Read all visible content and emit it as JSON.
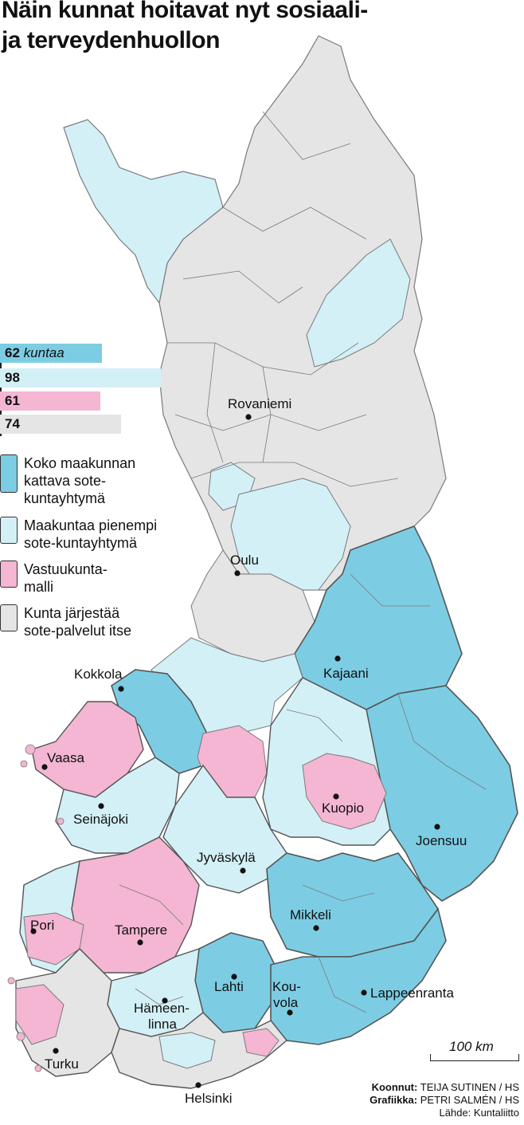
{
  "title": {
    "line1": "Näin kunnat hoitavat nyt sosiaali-",
    "line2": "ja terveydenhuollon"
  },
  "colors": {
    "koko_maakunta": "#7ccde4",
    "pienempi": "#d3f0f6",
    "vastuukunta": "#f4b6d2",
    "itse": "#e5e5e5",
    "border": "#555555"
  },
  "counts": [
    {
      "value": 62,
      "count": "62",
      "unit": "kuntaa",
      "color": "#7ccde4"
    },
    {
      "value": 98,
      "count": "98",
      "unit": "",
      "color": "#d3f0f6"
    },
    {
      "value": 61,
      "count": "61",
      "unit": "",
      "color": "#f4b6d2"
    },
    {
      "value": 74,
      "count": "74",
      "unit": "",
      "color": "#e5e5e5"
    }
  ],
  "legend": [
    {
      "line1": "Koko maakunnan",
      "line2": "kattava sote-",
      "line3": "kuntayhtymä",
      "color": "#7ccde4"
    },
    {
      "line1": "Maakuntaa pienempi",
      "line2": "sote-kuntayhtymä",
      "line3": "",
      "color": "#d3f0f6"
    },
    {
      "line1": "Vastuukunta-",
      "line2": "malli",
      "line3": "",
      "color": "#f4b6d2"
    },
    {
      "line1": "Kunta järjestää",
      "line2": "sote-palvelut itse",
      "line3": "",
      "color": "#e5e5e5"
    }
  ],
  "cities": {
    "rovaniemi": "Rovaniemi",
    "oulu": "Oulu",
    "kajaani": "Kajaani",
    "kokkola": "Kokkola",
    "vaasa": "Vaasa",
    "kuopio": "Kuopio",
    "seinajoki": "Seinäjoki",
    "joensuu": "Joensuu",
    "jyvaskyla": "Jyväskylä",
    "mikkeli": "Mikkeli",
    "pori": "Pori",
    "tampere": "Tampere",
    "lahti": "Lahti",
    "kouvola_1": "Kou-",
    "kouvola_2": "vola",
    "lappeenranta": "Lappeenranta",
    "hameenlinna_1": "Hämeen-",
    "hameenlinna_2": "linna",
    "turku": "Turku",
    "helsinki": "Helsinki"
  },
  "scale": "100 km",
  "credits": {
    "line1_label": "Koonnut:",
    "line1_name": "TEIJA SUTINEN / HS",
    "line2_label": "Grafiikka:",
    "line2_name": "PETRI SALMÉN / HS",
    "line3": "Lähde: Kuntaliitto"
  }
}
